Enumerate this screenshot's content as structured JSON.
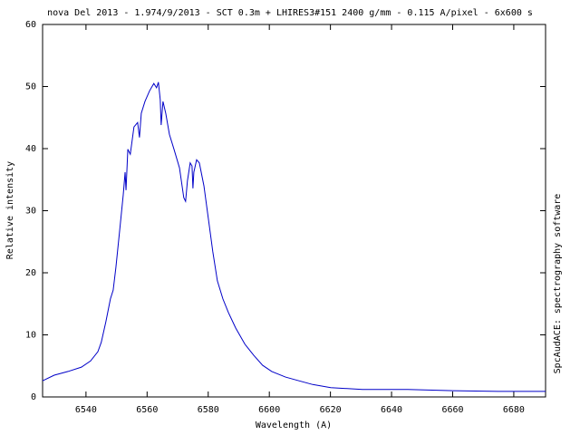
{
  "chart_data": {
    "type": "line",
    "title": "nova Del 2013 - 1.974/9/2013 - SCT 0.3m + LHIRES3#151 2400 g/mm - 0.115 A/pixel - 6x600 s",
    "x_label": "Wavelength (A)",
    "y_label": "Relative intensity",
    "side_note": "SpcAudACE: spectrography software",
    "xlim": [
      6525.8,
      6690.4
    ],
    "ylim": [
      0,
      60
    ],
    "xticks": [
      6540,
      6560,
      6580,
      6600,
      6620,
      6640,
      6660,
      6680
    ],
    "yticks": [
      0,
      10,
      20,
      30,
      40,
      50,
      60
    ],
    "series": [
      {
        "color": "#0000c8",
        "x": [
          6525.8,
          6529.6,
          6534.1,
          6538.5,
          6541.5,
          6543.9,
          6545.0,
          6546.5,
          6548.0,
          6548.9,
          6549.8,
          6551.0,
          6552.2,
          6552.8,
          6553.1,
          6553.7,
          6554.5,
          6555.7,
          6556.9,
          6557.5,
          6558.1,
          6559.3,
          6560.8,
          6562.2,
          6563.1,
          6563.7,
          6564.3,
          6564.6,
          6565.2,
          6566.1,
          6567.3,
          6568.8,
          6570.6,
          6572.0,
          6572.6,
          6573.2,
          6574.1,
          6574.7,
          6575.0,
          6575.3,
          6576.2,
          6577.1,
          6578.6,
          6580.0,
          6581.5,
          6583.0,
          6584.8,
          6586.6,
          6589.0,
          6592.0,
          6594.9,
          6597.8,
          6600.8,
          6605.3,
          6609.7,
          6614.2,
          6620.1,
          6630.5,
          6645.3,
          6660.2,
          6675.0,
          6690.4
        ],
        "values": [
          2.6,
          3.5,
          4.1,
          4.8,
          5.8,
          7.3,
          8.8,
          12.1,
          15.8,
          17.2,
          20.9,
          26.7,
          32.6,
          36.2,
          33.3,
          39.9,
          39.1,
          43.5,
          44.2,
          41.8,
          45.7,
          47.6,
          49.3,
          50.5,
          49.8,
          50.7,
          47.9,
          43.8,
          47.6,
          45.7,
          42.3,
          39.9,
          36.9,
          32.1,
          31.5,
          34.8,
          37.7,
          37.2,
          33.6,
          36.2,
          38.2,
          37.7,
          34.0,
          28.9,
          23.4,
          18.7,
          15.8,
          13.6,
          11.1,
          8.5,
          6.7,
          5.1,
          4.1,
          3.2,
          2.6,
          2.0,
          1.5,
          1.2,
          1.2,
          1.0,
          0.9,
          0.9
        ]
      }
    ]
  }
}
